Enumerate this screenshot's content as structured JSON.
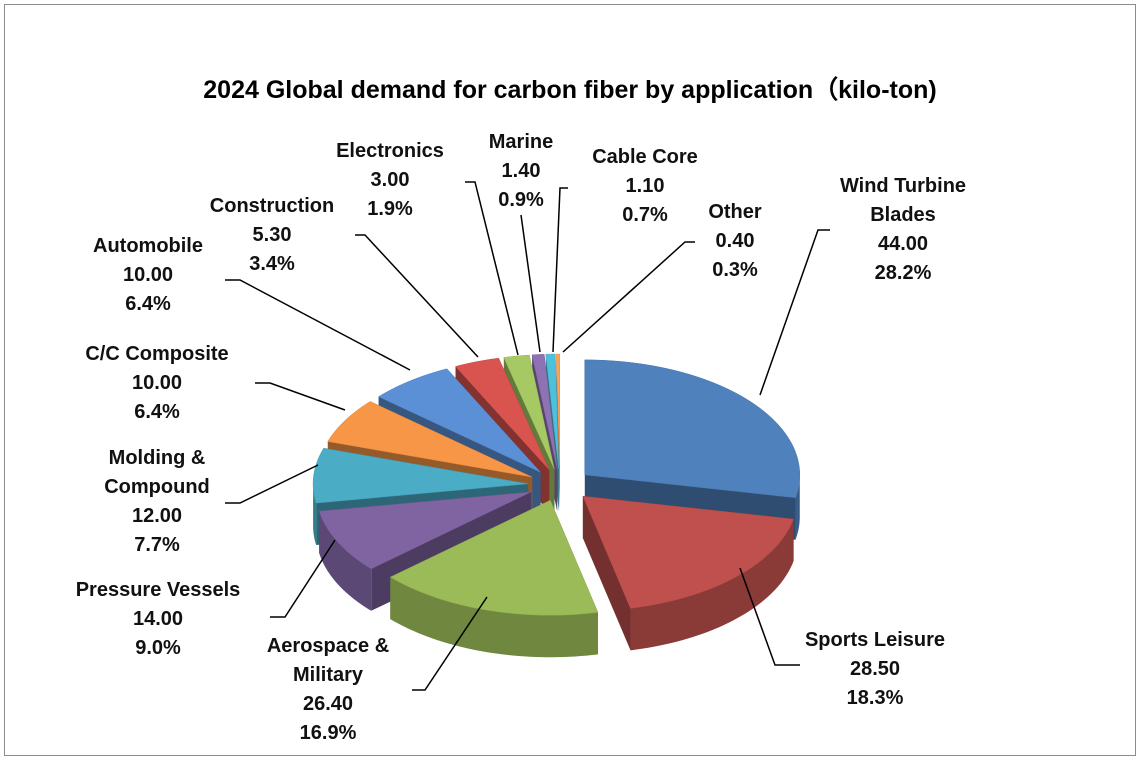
{
  "chart_data": {
    "type": "pie",
    "title": "2024 Global demand for carbon fiber by application（kilo-ton)",
    "categories": [
      "Wind Turbine Blades",
      "Sports Leisure",
      "Aerospace & Military",
      "Pressure Vessels",
      "Molding & Compound",
      "C/C Composite",
      "Automobile",
      "Construction",
      "Electronics",
      "Marine",
      "Cable Core",
      "Other"
    ],
    "values": [
      44,
      28.5,
      26.4,
      14,
      12,
      10,
      10,
      5.3,
      3,
      1.4,
      1.1,
      0.4
    ],
    "value_labels": [
      "44.00",
      "28.50",
      "26.40",
      "14.00",
      "12.00",
      "10.00",
      "10.00",
      "5.30",
      "3.00",
      "1.40",
      "1.10",
      "0.40"
    ],
    "percentages": [
      28.2,
      18.3,
      16.9,
      9.0,
      7.7,
      6.4,
      6.4,
      3.4,
      1.9,
      0.9,
      0.7,
      0.3
    ],
    "percentage_labels": [
      "28.2%",
      "18.3%",
      "16.9%",
      "9.0%",
      "7.7%",
      "6.4%",
      "6.4%",
      "3.4%",
      "1.9%",
      "0.9%",
      "0.7%",
      "0.3%"
    ],
    "colors": [
      "#4f81bd",
      "#c0504d",
      "#9bbb59",
      "#8064a2",
      "#4bacc6",
      "#f79646",
      "#5b8fd6",
      "#d9534f",
      "#a6c964",
      "#8f72b3",
      "#4fc0dc",
      "#f9a35a"
    ]
  }
}
